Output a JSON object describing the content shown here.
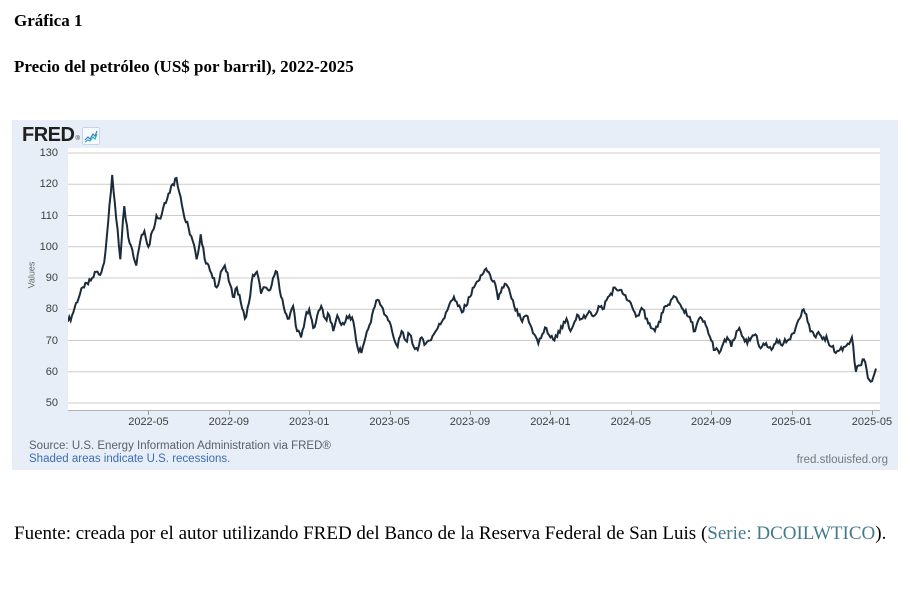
{
  "document": {
    "figure_label": "Gráfica 1",
    "figure_title": "Precio del petróleo (US$ por barril), 2022-2025",
    "footnote_prefix": "Fuente: creada por el autor utilizando FRED del Banco de la Reserva Federal de San Luis (",
    "footnote_series_link": "Serie: DCOILWTICO",
    "footnote_suffix": ")."
  },
  "fred_chart": {
    "logo_text": "FRED",
    "logo_mark": "®",
    "ylabel": "Values",
    "source_line": "Source: U.S. Energy Information Administration via FRED®",
    "recession_note": "Shaded areas indicate U.S. recessions.",
    "site_link": "fred.stlouisfed.org",
    "colors": {
      "chart_background": "#e8eef7",
      "plot_background": "#ffffff",
      "line": "#1c2b3a",
      "grid": "#cccccc",
      "recession_note_blue": "#3b6cb5",
      "series_link_teal": "#45798f"
    }
  },
  "chart_data": {
    "type": "line",
    "series_name": "WTI crude oil spot price, US$ per barrel (DCOILWTICO)",
    "title": "Precio del petróleo (US$ por barril), 2022-2025",
    "xlabel": "",
    "ylabel": "Values",
    "x_start": "2022-01",
    "x_end": "2025-05",
    "points_per_month": 5,
    "x_tick_labels": [
      "2022-05",
      "2022-09",
      "2023-01",
      "2023-05",
      "2023-09",
      "2024-01",
      "2024-05",
      "2024-09",
      "2025-01",
      "2025-05"
    ],
    "y_ticks": [
      50,
      60,
      70,
      80,
      90,
      100,
      110,
      120,
      130
    ],
    "ylim": [
      48.4,
      131.6
    ],
    "grid": true,
    "legend": false,
    "values": [
      76,
      78,
      82,
      85,
      87,
      88,
      90,
      92,
      91,
      95,
      108,
      123,
      109,
      96,
      113,
      103,
      99,
      94,
      102,
      105,
      100,
      105,
      110,
      109,
      114,
      117,
      120,
      122,
      116,
      109,
      106,
      102,
      96,
      104,
      96,
      94,
      90,
      87,
      92,
      94,
      89,
      84,
      87,
      82,
      77,
      82,
      91,
      92,
      85,
      87,
      86,
      90,
      92,
      84,
      79,
      77,
      81,
      73,
      71,
      77,
      80,
      74,
      78,
      81,
      77,
      78,
      73,
      78,
      75,
      76,
      78,
      76,
      68,
      66,
      71,
      75,
      80,
      83,
      81,
      78,
      76,
      71,
      68,
      73,
      70,
      72,
      68,
      67,
      71,
      69,
      70,
      72,
      74,
      76,
      79,
      82,
      84,
      81,
      79,
      81,
      84,
      87,
      89,
      91,
      93,
      91,
      89,
      83,
      87,
      88,
      85,
      81,
      78,
      76,
      78,
      75,
      72,
      69,
      72,
      74,
      71,
      70,
      73,
      74,
      77,
      73,
      76,
      78,
      77,
      78,
      79,
      78,
      81,
      80,
      83,
      85,
      87,
      86,
      85,
      83,
      82,
      79,
      78,
      80,
      77,
      74,
      73,
      76,
      79,
      81,
      83,
      84,
      82,
      80,
      78,
      76,
      73,
      77,
      76,
      74,
      70,
      67,
      66,
      69,
      71,
      68,
      71,
      74,
      71,
      69,
      71,
      72,
      68,
      69,
      68,
      67,
      69,
      70,
      69,
      70,
      72,
      74,
      77,
      80,
      76,
      73,
      71,
      72,
      71,
      70,
      68,
      66,
      67,
      68,
      69,
      71,
      60,
      62,
      64,
      58,
      57,
      61
    ]
  }
}
